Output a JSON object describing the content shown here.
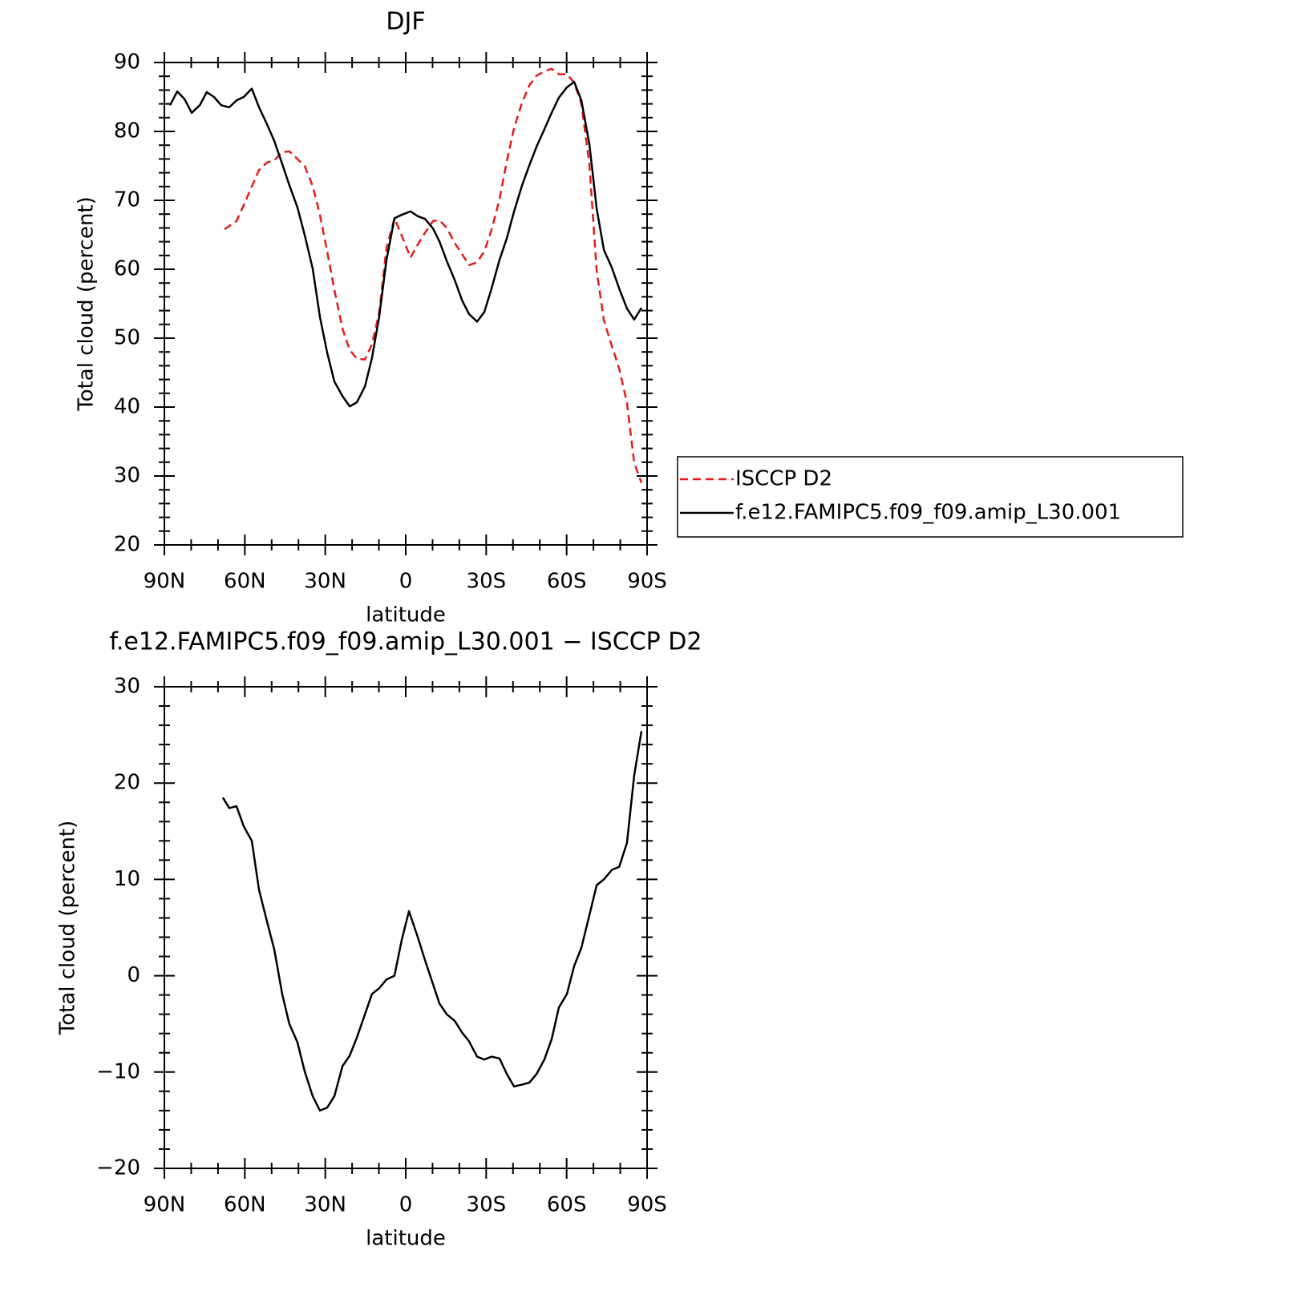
{
  "chart_data": [
    {
      "type": "line",
      "title": "DJF",
      "xlabel": "latitude",
      "ylabel": "Total cloud (percent)",
      "xlim": [
        90,
        -90
      ],
      "xticks": [
        {
          "value": 90,
          "label": "90N"
        },
        {
          "value": 60,
          "label": "60N"
        },
        {
          "value": 30,
          "label": "30N"
        },
        0,
        {
          "value": -30,
          "label": "30S"
        },
        {
          "value": -60,
          "label": "60S"
        },
        {
          "value": -90,
          "label": "90S"
        }
      ],
      "ylim": [
        20,
        90
      ],
      "yticks": [
        20,
        30,
        40,
        50,
        60,
        70,
        80,
        90
      ],
      "legend": "right",
      "series": [
        {
          "name": "ISCCP D2",
          "color": "#e41a1c",
          "line_style": "dashed",
          "x": [
            67.6,
            63.1,
            60.4,
            57.4,
            54.7,
            51.7,
            49.0,
            46.0,
            43.4,
            40.4,
            37.7,
            34.7,
            32.0,
            29.3,
            26.6,
            23.6,
            20.9,
            18.2,
            15.2,
            12.6,
            9.9,
            7.2,
            4.2,
            1.5,
            -1.8,
            -4.5,
            -7.2,
            -10.2,
            -12.6,
            -15.3,
            -18.3,
            -21.0,
            -23.6,
            -26.6,
            -29.3,
            -32.0,
            -35.0,
            -37.7,
            -40.4,
            -43.4,
            -46.1,
            -48.8,
            -51.7,
            -54.4,
            -57.1,
            -60.1,
            -62.8,
            -65.5,
            -68.5,
            -71.2,
            -73.9,
            -76.9,
            -79.6,
            -82.5,
            -85.2,
            -87.9
          ],
          "values": [
            65.8,
            67.0,
            69.3,
            72.0,
            74.4,
            75.5,
            75.8,
            77.0,
            77.1,
            76.0,
            75.0,
            72.1,
            67.9,
            62.6,
            57.0,
            51.4,
            48.3,
            47.0,
            46.9,
            49.1,
            53.7,
            63.0,
            67.4,
            64.9,
            61.7,
            63.6,
            65.3,
            67.0,
            67.1,
            66.0,
            63.8,
            62.2,
            60.6,
            61.0,
            62.6,
            65.7,
            70.2,
            75.7,
            80.5,
            84.2,
            86.7,
            88.1,
            88.7,
            89.1,
            88.3,
            88.3,
            87.1,
            84.0,
            75.2,
            59.8,
            52.6,
            48.8,
            45.6,
            40.6,
            31.9,
            29.0
          ]
        },
        {
          "name": "f.e12.FAMIPC5.f09_f09.amip_L30.001",
          "color": "#000000",
          "line_style": "solid",
          "x": [
            87.9,
            85.2,
            82.5,
            79.8,
            76.8,
            74.2,
            71.5,
            68.8,
            65.8,
            63.1,
            60.4,
            57.4,
            54.7,
            51.7,
            49.0,
            46.0,
            43.4,
            40.4,
            37.7,
            34.7,
            32.0,
            29.3,
            26.6,
            23.6,
            20.9,
            18.2,
            15.2,
            12.6,
            9.9,
            7.2,
            4.2,
            1.5,
            -1.8,
            -4.5,
            -7.2,
            -10.2,
            -12.6,
            -15.3,
            -18.3,
            -21.0,
            -23.6,
            -26.6,
            -29.3,
            -32.0,
            -35.0,
            -37.7,
            -40.4,
            -43.4,
            -46.1,
            -48.8,
            -51.7,
            -54.4,
            -57.1,
            -60.1,
            -62.8,
            -65.5,
            -68.5,
            -71.2,
            -73.9,
            -76.9,
            -79.6,
            -82.5,
            -85.2,
            -87.9
          ],
          "values": [
            83.8,
            85.8,
            84.7,
            82.7,
            83.8,
            85.7,
            85.0,
            83.8,
            83.5,
            84.5,
            85.0,
            86.2,
            83.5,
            81.0,
            78.6,
            75.2,
            72.2,
            69.0,
            65.0,
            60.1,
            53.1,
            47.9,
            43.7,
            41.6,
            40.1,
            40.7,
            43.0,
            47.1,
            53.1,
            61.3,
            67.4,
            67.9,
            68.4,
            67.7,
            67.3,
            65.9,
            64.0,
            61.2,
            58.4,
            55.5,
            53.5,
            52.4,
            53.8,
            57.2,
            61.4,
            64.5,
            68.4,
            72.2,
            75.1,
            77.8,
            80.3,
            82.7,
            84.9,
            86.4,
            87.2,
            84.5,
            78.1,
            68.8,
            62.8,
            60.2,
            57.2,
            54.3,
            52.7,
            54.4
          ]
        }
      ]
    },
    {
      "type": "line",
      "title": "f.e12.FAMIPC5.f09_f09.amip_L30.001 − ISCCP D2",
      "xlabel": "latitude",
      "ylabel": "Total cloud (percent)",
      "xlim": [
        90,
        -90
      ],
      "xticks": [
        {
          "value": 90,
          "label": "90N"
        },
        {
          "value": 60,
          "label": "60N"
        },
        {
          "value": 30,
          "label": "30N"
        },
        0,
        {
          "value": -30,
          "label": "30S"
        },
        {
          "value": -60,
          "label": "60S"
        },
        {
          "value": -90,
          "label": "90S"
        }
      ],
      "ylim": [
        -20,
        30
      ],
      "yticks": [
        {
          "value": -20,
          "label": "−20"
        },
        {
          "value": -10,
          "label": "−10"
        },
        0,
        10,
        20,
        30
      ],
      "series": [
        {
          "color": "#000000",
          "line_style": "solid",
          "x": [
            68.2,
            65.8,
            63.1,
            60.4,
            57.4,
            54.7,
            51.7,
            49.0,
            46.0,
            43.4,
            40.4,
            37.7,
            34.7,
            32.0,
            29.3,
            26.6,
            23.6,
            20.9,
            18.2,
            15.2,
            12.6,
            9.9,
            7.2,
            4.2,
            1.5,
            -1.2,
            -4.5,
            -7.2,
            -10.2,
            -12.6,
            -15.3,
            -18.3,
            -21.0,
            -23.6,
            -26.6,
            -29.3,
            -32.0,
            -35.0,
            -37.7,
            -40.4,
            -43.4,
            -46.1,
            -48.8,
            -51.7,
            -54.4,
            -57.1,
            -60.1,
            -62.8,
            -65.5,
            -68.5,
            -71.2,
            -73.9,
            -76.9,
            -79.6,
            -82.5,
            -85.2,
            -87.9
          ],
          "values": [
            18.5,
            17.4,
            17.6,
            15.5,
            14.0,
            8.9,
            5.6,
            2.7,
            -2.0,
            -5.0,
            -6.9,
            -9.9,
            -12.5,
            -14.0,
            -13.7,
            -12.5,
            -9.4,
            -8.3,
            -6.4,
            -4.0,
            -1.9,
            -1.3,
            -0.4,
            0.0,
            3.7,
            6.7,
            4.0,
            1.6,
            -0.9,
            -2.9,
            -4.0,
            -4.7,
            -5.9,
            -6.8,
            -8.4,
            -8.7,
            -8.4,
            -8.6,
            -10.2,
            -11.5,
            -11.3,
            -11.1,
            -10.2,
            -8.7,
            -6.6,
            -3.3,
            -1.9,
            1.0,
            2.9,
            6.3,
            9.4,
            10.0,
            11.0,
            11.3,
            13.8,
            20.8,
            25.4
          ]
        }
      ]
    }
  ]
}
